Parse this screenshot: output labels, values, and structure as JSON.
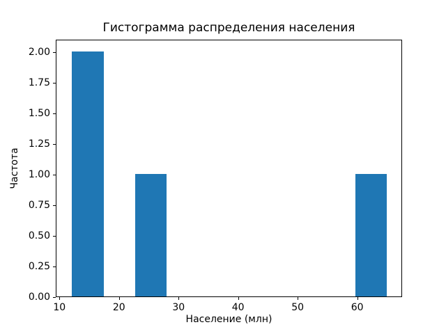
{
  "figure": {
    "background_color": "#ffffff",
    "axis_color": "#000000",
    "text_color": "#000000"
  },
  "chart_data": {
    "type": "histogram",
    "title": "Гистограмма распределения населения",
    "xlabel": "Население (млн)",
    "ylabel": "Частота",
    "bar_color": "#1f77b4",
    "grid": false,
    "legend": false,
    "xlim": [
      9.38,
      67.52
    ],
    "ylim": [
      0,
      2.1
    ],
    "xticks": [
      {
        "value": 10,
        "label": "10"
      },
      {
        "value": 20,
        "label": "20"
      },
      {
        "value": 30,
        "label": "30"
      },
      {
        "value": 40,
        "label": "40"
      },
      {
        "value": 50,
        "label": "50"
      },
      {
        "value": 60,
        "label": "60"
      }
    ],
    "yticks": [
      {
        "value": 0.0,
        "label": "0.00"
      },
      {
        "value": 0.25,
        "label": "0.25"
      },
      {
        "value": 0.5,
        "label": "0.50"
      },
      {
        "value": 0.75,
        "label": "0.75"
      },
      {
        "value": 1.0,
        "label": "1.00"
      },
      {
        "value": 1.25,
        "label": "1.25"
      },
      {
        "value": 1.5,
        "label": "1.50"
      },
      {
        "value": 1.75,
        "label": "1.75"
      },
      {
        "value": 2.0,
        "label": "2.00"
      }
    ],
    "bin_edges": [
      12.0,
      17.29,
      22.57,
      27.86,
      33.15,
      38.43,
      43.72,
      49.01,
      54.29,
      59.58,
      64.87
    ],
    "bin_counts": [
      2,
      0,
      1,
      0,
      0,
      0,
      0,
      0,
      0,
      1
    ],
    "bars": [
      {
        "x0": 12.0,
        "x1": 17.29,
        "frequency": 2
      },
      {
        "x0": 22.57,
        "x1": 27.86,
        "frequency": 1
      },
      {
        "x0": 59.58,
        "x1": 64.87,
        "frequency": 1
      }
    ]
  }
}
